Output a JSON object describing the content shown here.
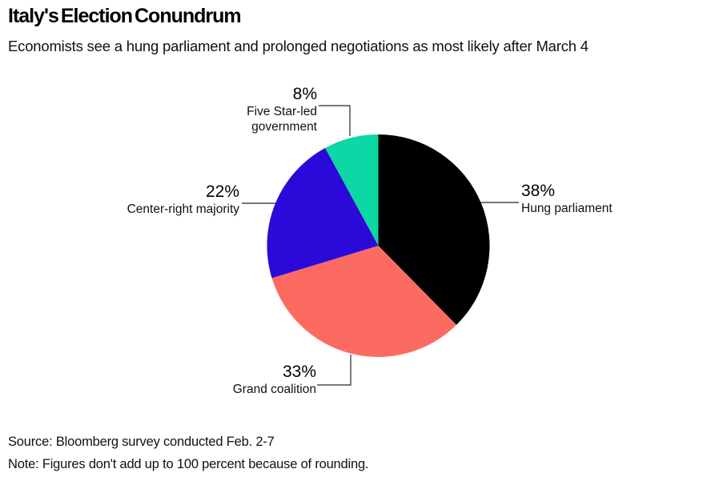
{
  "header": {
    "title": "Italy's Election Conundrum",
    "subtitle": "Economists see a hung parliament and prolonged negotiations as most likely after March 4"
  },
  "footer": {
    "source": "Source: Bloomberg survey conducted Feb. 2-7",
    "note": "Note: Figures don't add up to 100 percent because of rounding."
  },
  "chart_data": {
    "type": "pie",
    "title": "Italy's Election Conundrum",
    "subtitle": "Economists see a hung parliament and prolonged negotiations as most likely after March 4",
    "start_angle": "12 o'clock",
    "direction": "clockwise",
    "legend_position": "outside-callout-labels",
    "background_color": "#ffffff",
    "leader_line_color": "#262626",
    "slices": [
      {
        "label": "Hung parliament",
        "value_pct": 38,
        "display": "38%",
        "color": "#000000"
      },
      {
        "label": "Grand coalition",
        "value_pct": 33,
        "display": "33%",
        "color": "#fc6b62"
      },
      {
        "label": "Center-right majority",
        "value_pct": 22,
        "display": "22%",
        "color": "#2b09d9"
      },
      {
        "label": "Five Star-led government",
        "value_pct": 8,
        "display": "8%",
        "color": "#0bd8a5"
      }
    ]
  }
}
